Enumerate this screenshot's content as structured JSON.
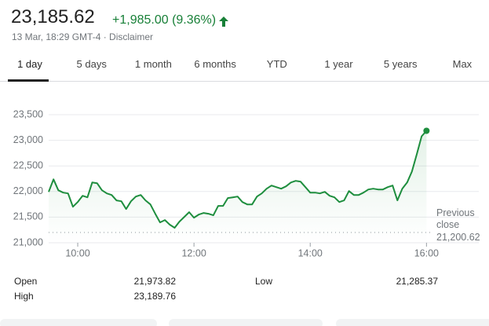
{
  "header": {
    "price": "23,185.62",
    "change": "+1,985.00 (9.36%)",
    "meta": "13 Mar, 18:29 GMT-4 · Disclaimer"
  },
  "tabs": [
    "1 day",
    "5 days",
    "1 month",
    "6 months",
    "YTD",
    "1 year",
    "5 years",
    "Max"
  ],
  "selected_tab": 0,
  "chart_data": {
    "type": "line",
    "color": "#1e8e3e",
    "x": [
      570,
      575,
      580,
      585,
      590,
      595,
      600,
      605,
      610,
      615,
      620,
      625,
      630,
      635,
      640,
      645,
      650,
      655,
      660,
      665,
      670,
      675,
      680,
      685,
      690,
      695,
      700,
      705,
      710,
      715,
      720,
      725,
      730,
      735,
      740,
      745,
      750,
      755,
      760,
      765,
      770,
      775,
      780,
      785,
      790,
      795,
      800,
      805,
      810,
      815,
      820,
      825,
      830,
      835,
      840,
      845,
      850,
      855,
      860,
      865,
      870,
      875,
      880,
      885,
      890,
      895,
      900,
      905,
      910,
      915,
      920,
      925,
      930,
      935,
      940,
      945,
      950,
      955,
      960
    ],
    "values": [
      21994,
      22238,
      22024,
      21979,
      21963,
      21703,
      21795,
      21917,
      21887,
      22177,
      22162,
      22024,
      21963,
      21933,
      21826,
      21810,
      21658,
      21810,
      21902,
      21933,
      21826,
      21749,
      21566,
      21398,
      21443,
      21352,
      21291,
      21413,
      21505,
      21596,
      21489,
      21550,
      21581,
      21566,
      21535,
      21719,
      21719,
      21872,
      21887,
      21902,
      21795,
      21749,
      21749,
      21902,
      21963,
      22055,
      22116,
      22086,
      22055,
      22101,
      22177,
      22208,
      22193,
      22086,
      21979,
      21979,
      21963,
      21994,
      21917,
      21887,
      21795,
      21826,
      22009,
      21933,
      21933,
      21979,
      22040,
      22055,
      22040,
      22040,
      22086,
      22116,
      21826,
      22055,
      22177,
      22391,
      22728,
      23079,
      23185.62
    ],
    "xlim": [
      570,
      1014
    ],
    "xticks": [
      {
        "value": 600,
        "label": "10:00"
      },
      {
        "value": 720,
        "label": "12:00"
      },
      {
        "value": 840,
        "label": "14:00"
      },
      {
        "value": 960,
        "label": "16:00"
      }
    ],
    "ylim": [
      21000,
      23500
    ],
    "yticks": [
      {
        "value": 21000,
        "label": "21,000"
      },
      {
        "value": 21500,
        "label": "21,500"
      },
      {
        "value": 22000,
        "label": "22,000"
      },
      {
        "value": 22500,
        "label": "22,500"
      },
      {
        "value": 23000,
        "label": "23,000"
      },
      {
        "value": 23500,
        "label": "23,500"
      }
    ],
    "grid": true,
    "previous_close": {
      "label": "Previous close",
      "value": 21200.62,
      "value_label": "21,200.62"
    }
  },
  "stats": [
    {
      "label": "Open",
      "value": "21,973.82"
    },
    {
      "label": "High",
      "value": "23,189.76"
    },
    {
      "label": "Low",
      "value": "21,285.37"
    }
  ]
}
